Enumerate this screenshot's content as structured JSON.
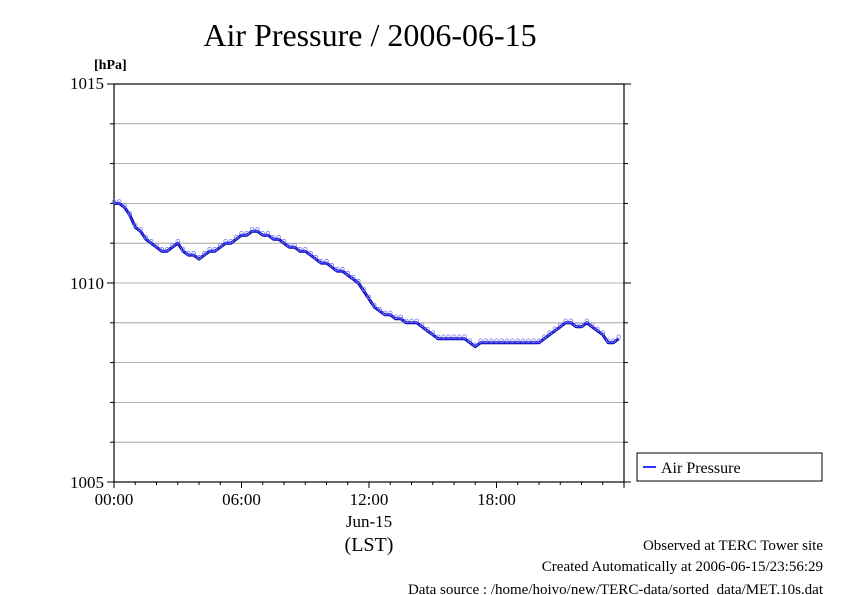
{
  "chart_data": {
    "type": "line",
    "title": "Air Pressure / 2006-06-15",
    "ylabel": "[hPa]",
    "xlabel": "(LST)",
    "date_label": "Jun-15",
    "ylim": [
      1005,
      1015
    ],
    "y_major_ticks": [
      "1005",
      "1010",
      "1015"
    ],
    "y_gridlines": [
      1006,
      1007,
      1008,
      1009,
      1010,
      1011,
      1012,
      1013,
      1014
    ],
    "xlim": [
      "00:00",
      "24:00"
    ],
    "x_ticks": [
      "00:00",
      "06:00",
      "12:00",
      "18:00"
    ],
    "grid": true,
    "legend_position": "right",
    "series": [
      {
        "name": "Air Pressure",
        "color": "#3333ff",
        "x": [
          "00:00",
          "00:15",
          "00:30",
          "00:45",
          "01:00",
          "01:15",
          "01:30",
          "01:45",
          "02:00",
          "02:15",
          "02:30",
          "02:45",
          "03:00",
          "03:15",
          "03:30",
          "03:45",
          "04:00",
          "04:15",
          "04:30",
          "04:45",
          "05:00",
          "05:15",
          "05:30",
          "05:45",
          "06:00",
          "06:15",
          "06:30",
          "06:45",
          "07:00",
          "07:15",
          "07:30",
          "07:45",
          "08:00",
          "08:15",
          "08:30",
          "08:45",
          "09:00",
          "09:15",
          "09:30",
          "09:45",
          "10:00",
          "10:15",
          "10:30",
          "10:45",
          "11:00",
          "11:15",
          "11:30",
          "11:45",
          "12:00",
          "12:15",
          "12:30",
          "12:45",
          "13:00",
          "13:15",
          "13:30",
          "13:45",
          "14:00",
          "14:15",
          "14:30",
          "14:45",
          "15:00",
          "15:15",
          "15:30",
          "15:45",
          "16:00",
          "16:15",
          "16:30",
          "16:45",
          "17:00",
          "17:15",
          "17:30",
          "17:45",
          "18:00",
          "18:15",
          "18:30",
          "18:45",
          "19:00",
          "19:15",
          "19:30",
          "19:45",
          "20:00",
          "20:15",
          "20:30",
          "20:45",
          "21:00",
          "21:15",
          "21:30",
          "21:45",
          "22:00",
          "22:15",
          "22:30",
          "22:45",
          "23:00",
          "23:15",
          "23:30",
          "23:45"
        ],
        "values": [
          1012.0,
          1012.0,
          1011.9,
          1011.7,
          1011.4,
          1011.3,
          1011.1,
          1011.0,
          1010.9,
          1010.8,
          1010.8,
          1010.9,
          1011.0,
          1010.8,
          1010.7,
          1010.7,
          1010.6,
          1010.7,
          1010.8,
          1010.8,
          1010.9,
          1011.0,
          1011.0,
          1011.1,
          1011.2,
          1011.2,
          1011.3,
          1011.3,
          1011.2,
          1011.2,
          1011.1,
          1011.1,
          1011.0,
          1010.9,
          1010.9,
          1010.8,
          1010.8,
          1010.7,
          1010.6,
          1010.5,
          1010.5,
          1010.4,
          1010.3,
          1010.3,
          1010.2,
          1010.1,
          1010.0,
          1009.8,
          1009.6,
          1009.4,
          1009.3,
          1009.2,
          1009.2,
          1009.1,
          1009.1,
          1009.0,
          1009.0,
          1009.0,
          1008.9,
          1008.8,
          1008.7,
          1008.6,
          1008.6,
          1008.6,
          1008.6,
          1008.6,
          1008.6,
          1008.5,
          1008.4,
          1008.5,
          1008.5,
          1008.5,
          1008.5,
          1008.5,
          1008.5,
          1008.5,
          1008.5,
          1008.5,
          1008.5,
          1008.5,
          1008.5,
          1008.6,
          1008.7,
          1008.8,
          1008.9,
          1009.0,
          1009.0,
          1008.9,
          1008.9,
          1009.0,
          1008.9,
          1008.8,
          1008.7,
          1008.5,
          1008.5,
          1008.6
        ]
      }
    ]
  },
  "footer": {
    "line1": "Observed at TERC Tower site",
    "line2": "Created Automatically at 2006-06-15/23:56:29",
    "line3": "Data source : /home/hoivo/new/TERC-data/sorted  data/MET.10s.dat"
  }
}
